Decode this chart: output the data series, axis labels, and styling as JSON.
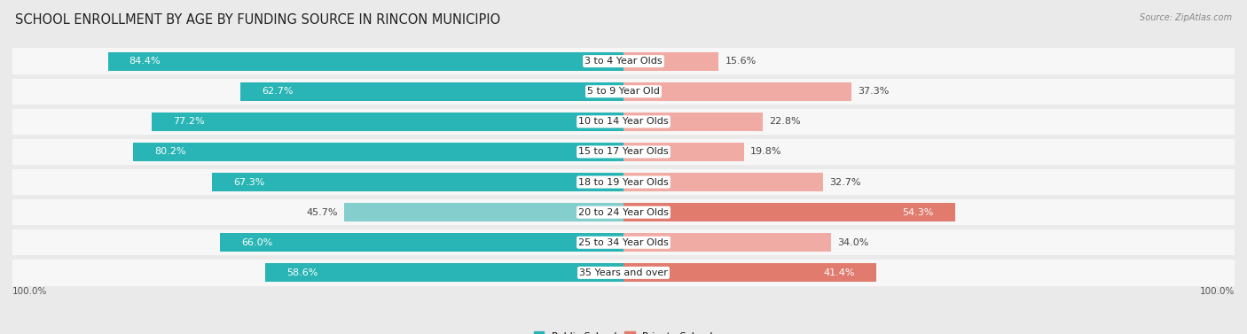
{
  "title": "SCHOOL ENROLLMENT BY AGE BY FUNDING SOURCE IN RINCON MUNICIPIO",
  "source": "Source: ZipAtlas.com",
  "categories": [
    "3 to 4 Year Olds",
    "5 to 9 Year Old",
    "10 to 14 Year Olds",
    "15 to 17 Year Olds",
    "18 to 19 Year Olds",
    "20 to 24 Year Olds",
    "25 to 34 Year Olds",
    "35 Years and over"
  ],
  "public_values": [
    84.4,
    62.7,
    77.2,
    80.2,
    67.3,
    45.7,
    66.0,
    58.6
  ],
  "private_values": [
    15.6,
    37.3,
    22.8,
    19.8,
    32.7,
    54.3,
    34.0,
    41.4
  ],
  "public_color": "#29b5b5",
  "public_color_light": "#85cece",
  "private_color": "#e07b6e",
  "private_color_light": "#f0aba4",
  "bg_color": "#eaeaea",
  "row_bg_color": "#f7f7f7",
  "title_fontsize": 10.5,
  "label_fontsize": 8,
  "axis_label_fontsize": 7.5,
  "legend_fontsize": 8,
  "bar_height": 0.62,
  "x_left_label": "100.0%",
  "x_right_label": "100.0%"
}
